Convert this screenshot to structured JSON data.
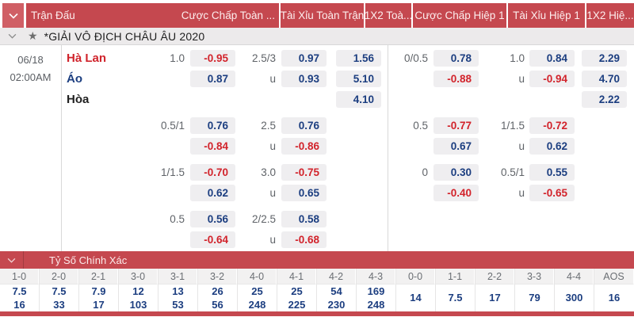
{
  "colors": {
    "header_red": "#c5484f",
    "header_chevron_red": "#d05f65",
    "league_bg": "#eceaeb",
    "cell_bg": "#efeef0",
    "odds_blue": "#1c3e80",
    "odds_red": "#d2232b",
    "muted_text": "#5f6368",
    "team_red": "#d0242c",
    "team_blue": "#1c3e80",
    "team_black": "#212121"
  },
  "icons": {
    "header_collapse": "chevron-down-icon",
    "league_collapse": "chevron-down-icon",
    "favorite": "star-icon",
    "score_collapse": "chevron-down-icon"
  },
  "header": {
    "columns": [
      "Trận Đấu",
      "Cược Chấp Toàn ...",
      "Tài Xỉu Toàn Trận",
      "1X2 Toà...",
      "Cược Chấp Hiệp 1",
      "Tài Xỉu Hiệp 1",
      "1X2 Hiệ..."
    ]
  },
  "league": {
    "label": "*GIẢI VÔ ĐỊCH CHÂU ÂU 2020"
  },
  "match": {
    "date": "06/18",
    "time": "02:00AM"
  },
  "odds": {
    "blocks": [
      [
        {
          "team": "Hà Lan",
          "teamColor": "red",
          "hdp": "1.0",
          "hodds": "-0.95",
          "ou": "2.5/3",
          "uodds": "0.97",
          "x12": "1.56",
          "h1hdp": "0/0.5",
          "h1odds": "0.78",
          "h1ou": "1.0",
          "h1uodds": "0.84",
          "h1x12": "2.29"
        },
        {
          "team": "Áo",
          "teamColor": "blue",
          "hodds": "0.87",
          "ou": "u",
          "uodds": "0.93",
          "x12": "5.10",
          "h1odds": "-0.88",
          "h1ou": "u",
          "h1uodds": "-0.94",
          "h1x12": "4.70"
        },
        {
          "team": "Hòa",
          "teamColor": "black",
          "x12": "4.10",
          "h1x12": "2.22"
        }
      ],
      [
        {
          "hdp": "0.5/1",
          "hodds": "0.76",
          "ou": "2.5",
          "uodds": "0.76",
          "h1hdp": "0.5",
          "h1odds": "-0.77",
          "h1ou": "1/1.5",
          "h1uodds": "-0.72"
        },
        {
          "hodds": "-0.84",
          "ou": "u",
          "uodds": "-0.86",
          "h1odds": "0.67",
          "h1ou": "u",
          "h1uodds": "0.62"
        }
      ],
      [
        {
          "hdp": "1/1.5",
          "hodds": "-0.70",
          "ou": "3.0",
          "uodds": "-0.75",
          "h1hdp": "0",
          "h1odds": "0.30",
          "h1ou": "0.5/1",
          "h1uodds": "0.55"
        },
        {
          "hodds": "0.62",
          "ou": "u",
          "uodds": "0.65",
          "h1odds": "-0.40",
          "h1ou": "u",
          "h1uodds": "-0.65"
        }
      ],
      [
        {
          "hdp": "0.5",
          "hodds": "0.56",
          "ou": "2/2.5",
          "uodds": "0.58"
        },
        {
          "hodds": "-0.64",
          "ou": "u",
          "uodds": "-0.68"
        }
      ]
    ]
  },
  "correct_score": {
    "title": "Tỷ Số Chính Xác",
    "columns": [
      "1-0",
      "2-0",
      "2-1",
      "3-0",
      "3-1",
      "3-2",
      "4-0",
      "4-1",
      "4-2",
      "4-3",
      "0-0",
      "1-1",
      "2-2",
      "3-3",
      "4-4",
      "AOS"
    ],
    "row1": [
      "7.5",
      "7.5",
      "7.9",
      "12",
      "13",
      "26",
      "25",
      "25",
      "54",
      "169",
      "14",
      "7.5",
      "17",
      "79",
      "300",
      "16"
    ],
    "row2": [
      "16",
      "33",
      "17",
      "103",
      "53",
      "56",
      "248",
      "225",
      "230",
      "248",
      "",
      "",
      "",
      "",
      "",
      ""
    ]
  }
}
